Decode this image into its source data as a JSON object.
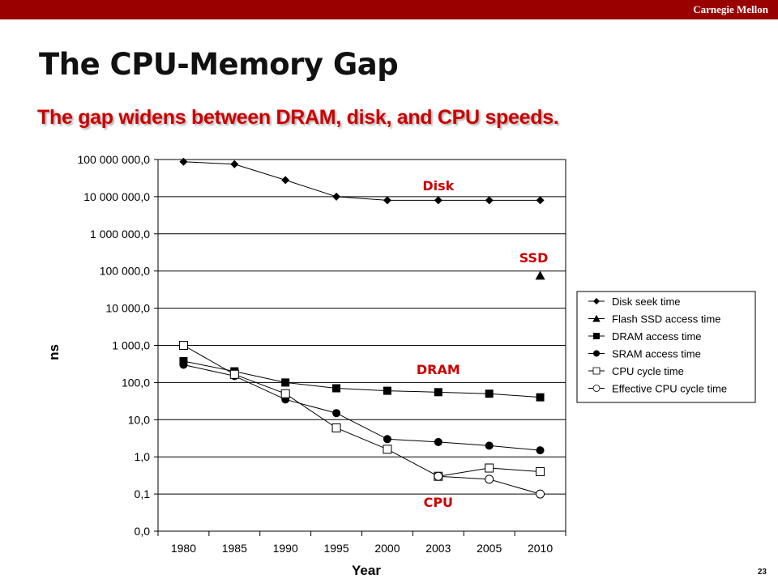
{
  "header": {
    "brand": "Carnegie Mellon"
  },
  "slide": {
    "title": "The CPU-Memory Gap",
    "subtitle": "The gap widens between DRAM, disk, and CPU speeds.",
    "page_number": "23"
  },
  "colors": {
    "top_bar": "#990000",
    "title": "#111111",
    "subtitle": "#cc0000",
    "annotation": "#cc0000"
  },
  "chart_data": {
    "type": "line",
    "title": "",
    "xlabel": "Year",
    "ylabel": "ns",
    "y_scale": "log",
    "ylim": [
      0.01,
      100000000
    ],
    "grid": true,
    "legend_position": "right",
    "categories": [
      "1980",
      "1985",
      "1990",
      "1995",
      "2000",
      "2003",
      "2005",
      "2010"
    ],
    "y_tick_values": [
      0.01,
      0.1,
      1,
      10,
      100,
      1000,
      10000,
      100000,
      1000000,
      10000000,
      100000000
    ],
    "y_tick_labels": [
      "0,0",
      "0,1",
      "1,0",
      "10,0",
      "100,0",
      "1 000,0",
      "10 000,0",
      "100 000,0",
      "1 000 000,0",
      "10 000 000,0",
      "100 000 000,0"
    ],
    "series": [
      {
        "name": "Disk seek time",
        "marker": "diamond",
        "values": [
          87000000,
          75000000,
          28000000,
          10000000,
          8000000,
          8000000,
          8000000,
          8000000
        ]
      },
      {
        "name": "Flash SSD access time",
        "marker": "triangle",
        "values": [
          null,
          null,
          null,
          null,
          null,
          null,
          null,
          75000
        ]
      },
      {
        "name": "DRAM access time",
        "marker": "square",
        "values": [
          375,
          200,
          100,
          70,
          60,
          55,
          50,
          40
        ]
      },
      {
        "name": "SRAM access time",
        "marker": "circle",
        "values": [
          300,
          150,
          35,
          15,
          3,
          2.5,
          2,
          1.5
        ]
      },
      {
        "name": "CPU cycle time",
        "marker": "square-open",
        "values": [
          1000,
          166,
          50,
          6,
          1.6,
          0.3,
          0.5,
          0.4
        ]
      },
      {
        "name": "Effective CPU cycle time",
        "marker": "circle-open",
        "values": [
          null,
          null,
          null,
          null,
          null,
          0.3,
          0.25,
          0.1
        ]
      }
    ],
    "annotations": [
      {
        "text": "Disk",
        "category": "2003",
        "y": 15000000
      },
      {
        "text": "SSD",
        "category": "2010",
        "y": 170000
      },
      {
        "text": "DRAM",
        "category": "2003",
        "y": 170
      },
      {
        "text": "CPU",
        "category": "2003",
        "y": 0.045
      }
    ]
  }
}
